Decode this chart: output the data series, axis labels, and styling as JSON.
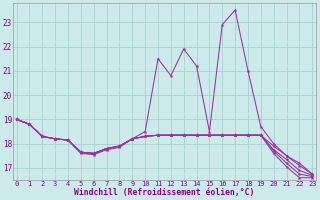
{
  "xlabel": "Windchill (Refroidissement éolien,°C)",
  "bg_color": "#cceaea",
  "grid_color": "#aad4d4",
  "line_color": "#993399",
  "x": [
    0,
    1,
    2,
    3,
    4,
    5,
    6,
    7,
    8,
    9,
    10,
    11,
    12,
    13,
    14,
    15,
    16,
    17,
    18,
    19,
    20,
    21,
    22,
    23
  ],
  "series": [
    [
      19.0,
      18.8,
      18.3,
      18.2,
      18.15,
      17.6,
      17.55,
      17.75,
      17.85,
      18.2,
      18.5,
      21.5,
      20.8,
      21.9,
      21.2,
      18.5,
      22.9,
      23.5,
      21.0,
      18.7,
      18.0,
      17.5,
      17.2,
      16.75
    ],
    [
      19.0,
      18.8,
      18.3,
      18.2,
      18.15,
      17.65,
      17.6,
      17.8,
      17.9,
      18.2,
      18.3,
      18.35,
      18.35,
      18.35,
      18.35,
      18.35,
      18.35,
      18.35,
      18.35,
      18.35,
      17.9,
      17.5,
      17.1,
      16.75
    ],
    [
      19.0,
      18.8,
      18.3,
      18.2,
      18.15,
      17.65,
      17.6,
      17.8,
      17.9,
      18.2,
      18.3,
      18.35,
      18.35,
      18.35,
      18.35,
      18.35,
      18.35,
      18.35,
      18.35,
      18.35,
      17.75,
      17.35,
      16.9,
      16.7
    ],
    [
      19.0,
      18.8,
      18.3,
      18.2,
      18.15,
      17.65,
      17.6,
      17.8,
      17.9,
      18.2,
      18.3,
      18.35,
      18.35,
      18.35,
      18.35,
      18.35,
      18.35,
      18.35,
      18.35,
      18.35,
      17.7,
      17.2,
      16.75,
      16.65
    ],
    [
      19.0,
      18.8,
      18.3,
      18.2,
      18.15,
      17.65,
      17.6,
      17.8,
      17.9,
      18.2,
      18.3,
      18.35,
      18.35,
      18.35,
      18.35,
      18.35,
      18.35,
      18.35,
      18.35,
      18.35,
      17.6,
      17.05,
      16.6,
      16.6
    ]
  ],
  "yticks": [
    17,
    18,
    19,
    20,
    21,
    22,
    23
  ],
  "xticks": [
    0,
    1,
    2,
    3,
    4,
    5,
    6,
    7,
    8,
    9,
    10,
    11,
    12,
    13,
    14,
    15,
    16,
    17,
    18,
    19,
    20,
    21,
    22,
    23
  ],
  "xlim": [
    -0.3,
    23.3
  ],
  "ylim": [
    16.5,
    23.8
  ]
}
